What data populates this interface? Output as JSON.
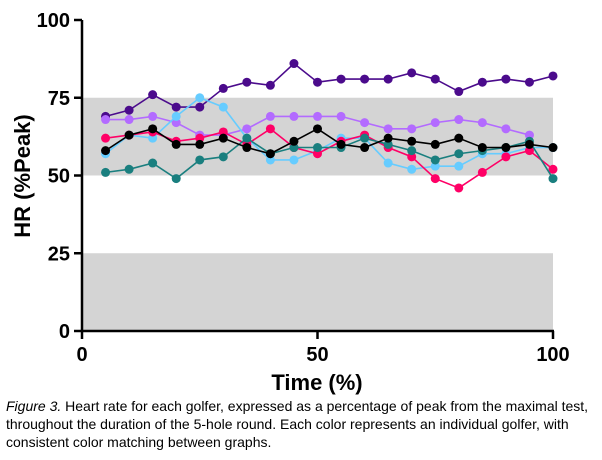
{
  "chart_data": {
    "type": "line",
    "xlabel": "Time (%)",
    "ylabel": "HR (%Peak)",
    "xlim": [
      0,
      100
    ],
    "ylim": [
      0,
      100
    ],
    "xticks": [
      "0",
      "50",
      "100"
    ],
    "yticks": [
      "0",
      "25",
      "50",
      "75",
      "100"
    ],
    "shaded_bands": [
      [
        50,
        75
      ],
      [
        0,
        25
      ]
    ],
    "band_color": "#d4d4d4",
    "x": [
      5,
      10,
      15,
      20,
      25,
      30,
      35,
      40,
      45,
      50,
      55,
      60,
      65,
      70,
      75,
      80,
      85,
      90,
      95,
      100
    ],
    "series": [
      {
        "color": "#4b0b8c",
        "values": [
          69,
          71,
          76,
          72,
          72,
          78,
          80,
          79,
          86,
          80,
          81,
          81,
          81,
          83,
          81,
          77,
          80,
          81,
          80,
          82
        ]
      },
      {
        "color": "#b36bff",
        "values": [
          68,
          68,
          69,
          67,
          63,
          63,
          65,
          69,
          69,
          69,
          69,
          67,
          65,
          65,
          67,
          68,
          67,
          65,
          63,
          null
        ]
      },
      {
        "color": "#66ccff",
        "values": [
          57,
          63,
          62,
          69,
          75,
          72,
          62,
          55,
          55,
          58,
          62,
          62,
          54,
          52,
          53,
          53,
          57,
          57,
          59,
          59
        ]
      },
      {
        "color": "#ff0066",
        "values": [
          62,
          63,
          64,
          61,
          62,
          64,
          60,
          65,
          59,
          57,
          61,
          63,
          59,
          56,
          49,
          46,
          51,
          56,
          58,
          52
        ]
      },
      {
        "color": "#1a7f7f",
        "values": [
          51,
          52,
          54,
          49,
          55,
          56,
          62,
          57,
          59,
          59,
          59,
          62,
          60,
          58,
          55,
          57,
          58,
          59,
          61,
          49
        ]
      },
      {
        "color": "#000000",
        "values": [
          58,
          63,
          65,
          60,
          60,
          62,
          59,
          57,
          61,
          65,
          60,
          59,
          62,
          61,
          60,
          62,
          59,
          59,
          60,
          59
        ]
      }
    ]
  },
  "caption": {
    "label": "Figure 3.",
    "text": " Heart rate for each golfer, expressed as a percentage of peak from the maximal test, throughout the duration of the 5-hole round. Each color represents an individual golfer, with consistent color matching between graphs."
  }
}
